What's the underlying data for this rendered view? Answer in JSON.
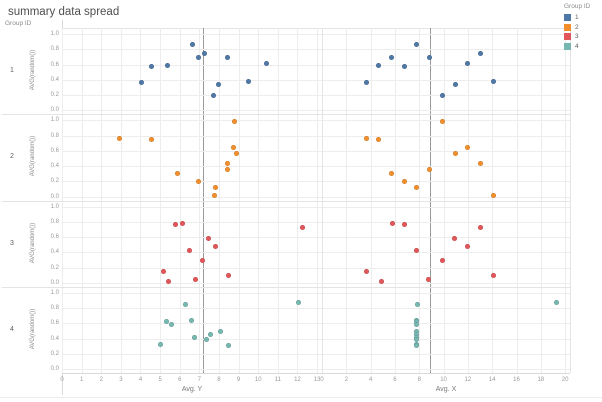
{
  "title": "summary data spread",
  "row_header": "Group ID",
  "legend": {
    "title": "Group ID",
    "items": [
      {
        "label": "1",
        "color": "#4e79a7"
      },
      {
        "label": "2",
        "color": "#f28e2b"
      },
      {
        "label": "3",
        "color": "#e15759"
      },
      {
        "label": "4",
        "color": "#76b7b2"
      }
    ]
  },
  "chart_data": {
    "type": "scatter",
    "title": "summary data spread",
    "facet_row_field": "Group ID",
    "facet_rows": [
      "1",
      "2",
      "3",
      "4"
    ],
    "ylabel": "AVG(random())",
    "y_ticks": [
      1.0,
      0.8,
      0.6,
      0.4,
      0.2,
      0.0
    ],
    "y_range": [
      -0.05,
      1.08
    ],
    "grid": true,
    "legend_position": "top-right",
    "columns": [
      {
        "label": "Avg. Y",
        "ticks": [
          0,
          1,
          2,
          3,
          4,
          5,
          6,
          7,
          8,
          9,
          10,
          11,
          12,
          13
        ],
        "range": [
          0,
          13.25
        ],
        "ref_line": 7.2,
        "point_key": "Y"
      },
      {
        "label": "Avg. X",
        "ticks": [
          0,
          2,
          4,
          6,
          8,
          10,
          12,
          14,
          16,
          18,
          20
        ],
        "range": [
          0,
          20.4
        ],
        "ref_line": 8.85,
        "point_key": "X"
      }
    ],
    "series": [
      {
        "group": "1",
        "color": "#4e79a7",
        "points": [
          {
            "Y": 6.63,
            "X": 7.76,
            "r": 0.86
          },
          {
            "Y": 7.24,
            "X": 13.06,
            "r": 0.74
          },
          {
            "Y": 6.94,
            "X": 8.85,
            "r": 0.69
          },
          {
            "Y": 8.42,
            "X": 5.71,
            "r": 0.69
          },
          {
            "Y": 10.41,
            "X": 11.94,
            "r": 0.62
          },
          {
            "Y": 5.37,
            "X": 4.65,
            "r": 0.59
          },
          {
            "Y": 4.58,
            "X": 6.8,
            "r": 0.57
          },
          {
            "Y": 9.52,
            "X": 14.1,
            "r": 0.38
          },
          {
            "Y": 4.05,
            "X": 3.66,
            "r": 0.36
          },
          {
            "Y": 7.96,
            "X": 10.98,
            "r": 0.34
          },
          {
            "Y": 7.7,
            "X": 9.89,
            "r": 0.19
          }
        ]
      },
      {
        "group": "2",
        "color": "#f28e2b",
        "points": [
          {
            "Y": 8.79,
            "X": 9.89,
            "r": 0.98
          },
          {
            "Y": 2.94,
            "X": 3.66,
            "r": 0.76
          },
          {
            "Y": 4.54,
            "X": 4.65,
            "r": 0.75
          },
          {
            "Y": 8.76,
            "X": 11.94,
            "r": 0.64
          },
          {
            "Y": 8.91,
            "X": 10.98,
            "r": 0.57
          },
          {
            "Y": 8.42,
            "X": 13.06,
            "r": 0.43
          },
          {
            "Y": 8.45,
            "X": 8.85,
            "r": 0.36
          },
          {
            "Y": 5.87,
            "X": 5.71,
            "r": 0.3
          },
          {
            "Y": 6.94,
            "X": 6.8,
            "r": 0.2
          },
          {
            "Y": 7.84,
            "X": 7.76,
            "r": 0.12
          },
          {
            "Y": 7.77,
            "X": 14.1,
            "r": 0.02
          }
        ]
      },
      {
        "group": "3",
        "color": "#e15759",
        "points": [
          {
            "Y": 6.16,
            "X": 5.8,
            "r": 0.78
          },
          {
            "Y": 5.8,
            "X": 6.78,
            "r": 0.77
          },
          {
            "Y": 12.28,
            "X": 13.03,
            "r": 0.73
          },
          {
            "Y": 7.47,
            "X": 10.93,
            "r": 0.58
          },
          {
            "Y": 7.82,
            "X": 11.97,
            "r": 0.48
          },
          {
            "Y": 6.52,
            "X": 7.79,
            "r": 0.43
          },
          {
            "Y": 7.18,
            "X": 9.95,
            "r": 0.29
          },
          {
            "Y": 5.17,
            "X": 3.66,
            "r": 0.15
          },
          {
            "Y": 8.5,
            "X": 14.12,
            "r": 0.1
          },
          {
            "Y": 6.79,
            "X": 8.8,
            "r": 0.05
          },
          {
            "Y": 5.44,
            "X": 4.92,
            "r": 0.02
          }
        ]
      },
      {
        "group": "4",
        "color": "#76b7b2",
        "points": [
          {
            "Y": 12.03,
            "X": 19.32,
            "r": 0.88
          },
          {
            "Y": 6.28,
            "X": 7.84,
            "r": 0.85
          },
          {
            "Y": 6.62,
            "X": 7.8,
            "r": 0.64
          },
          {
            "Y": 5.34,
            "X": 7.8,
            "r": 0.63
          },
          {
            "Y": 5.56,
            "X": 7.8,
            "r": 0.58
          },
          {
            "Y": 8.1,
            "X": 7.8,
            "r": 0.5
          },
          {
            "Y": 7.59,
            "X": 7.8,
            "r": 0.46
          },
          {
            "Y": 6.73,
            "X": 7.8,
            "r": 0.42
          },
          {
            "Y": 7.38,
            "X": 7.8,
            "r": 0.39
          },
          {
            "Y": 5.04,
            "X": 7.8,
            "r": 0.32
          },
          {
            "Y": 8.49,
            "X": 7.8,
            "r": 0.31
          }
        ]
      }
    ]
  }
}
